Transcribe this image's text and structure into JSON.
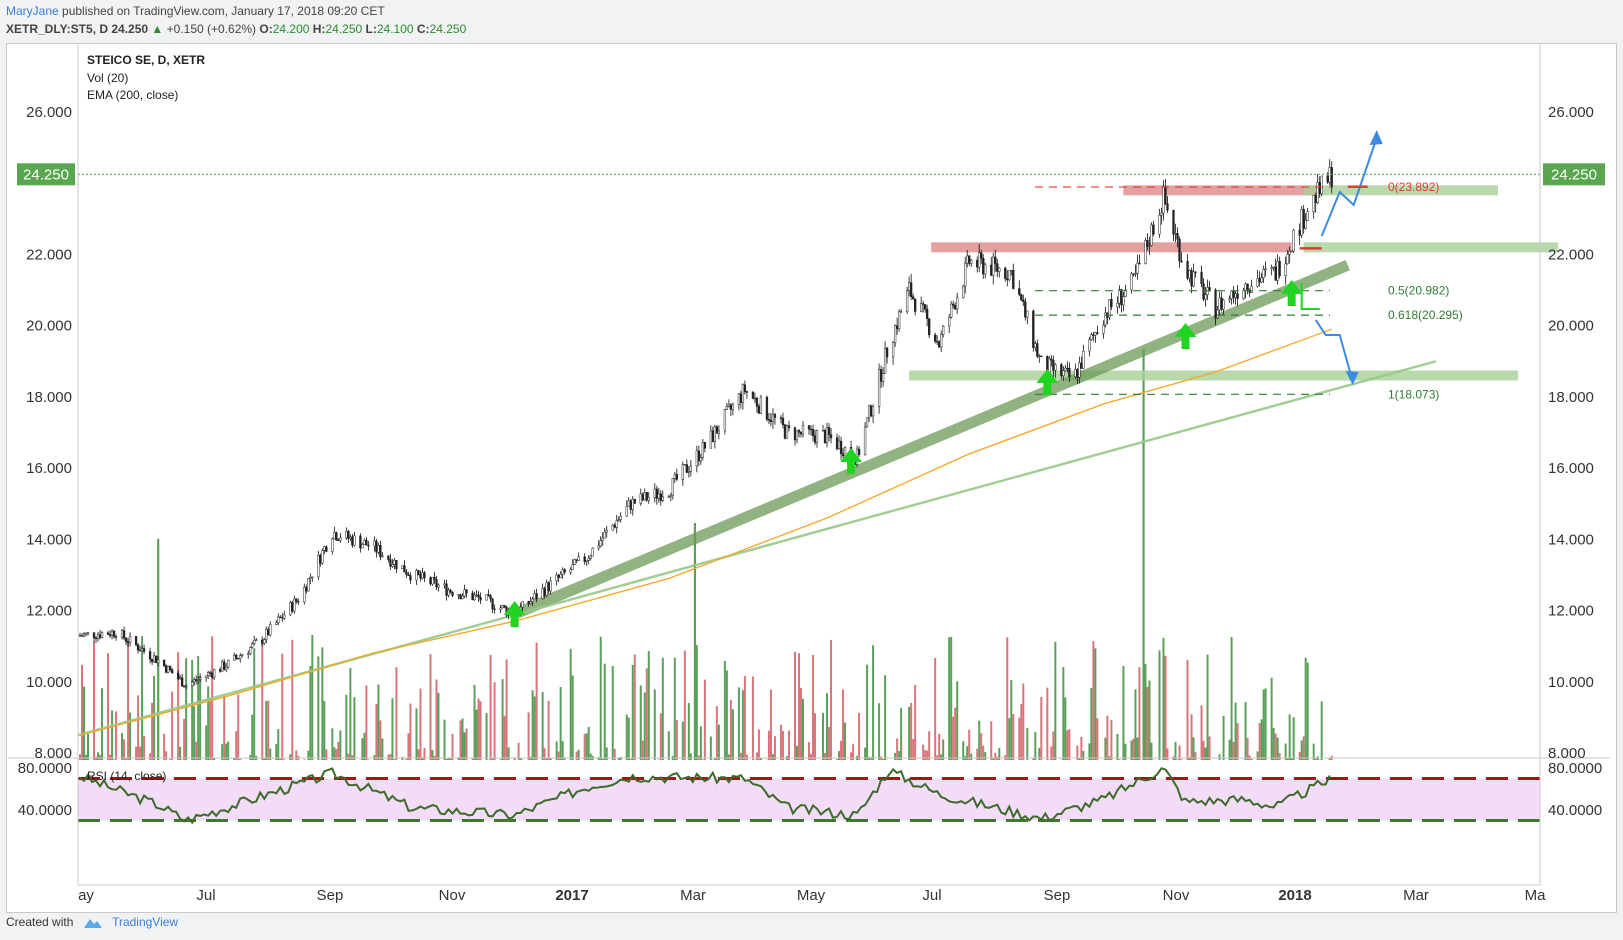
{
  "header": {
    "author": "MaryJane",
    "published": "published on TradingView.com, January 17, 2018 09:20 CET",
    "symbol_line": "XETR_DLY:ST5, D",
    "last": "24.250",
    "change": "+0.150 (+0.62%)",
    "o_label": "O:",
    "o_val": "24.200",
    "h_label": "H:",
    "h_val": "24.250",
    "l_label": "L:",
    "l_val": "24.100",
    "c_label": "C:",
    "c_val": "24.250"
  },
  "legend": {
    "title": "STEICO SE, D, XETR",
    "vol": "Vol (20)",
    "ema": "EMA (200, close)",
    "rsi": "RSI (14, close)"
  },
  "price_axis": {
    "labels": [
      "26.000",
      "22.000",
      "20.000",
      "18.000",
      "16.000",
      "14.000",
      "12.000",
      "10.000",
      "8.000"
    ],
    "values": [
      26,
      22,
      20,
      18,
      16,
      14,
      12,
      10,
      8
    ],
    "current_label": "24.250",
    "current_value": 24.25
  },
  "rsi_axis": {
    "labels": [
      "80.0000",
      "40.0000"
    ],
    "values": [
      80,
      40
    ]
  },
  "time_axis": {
    "labels": [
      "ay",
      "Jul",
      "Sep",
      "Nov",
      "2017",
      "Mar",
      "May",
      "Jul",
      "Sep",
      "Nov",
      "2018",
      "Mar",
      "Ma"
    ],
    "bold": [
      "2017",
      "2018"
    ]
  },
  "fib": [
    {
      "label": "0(23.892)",
      "value": 23.892,
      "color": "#e53935"
    },
    {
      "label": "0.5(20.982)",
      "value": 20.982,
      "color": "#2e7d32"
    },
    {
      "label": "0.618(20.295)",
      "value": 20.295,
      "color": "#2e7d32"
    },
    {
      "label": "1(18.073)",
      "value": 18.073,
      "color": "#2e7d32"
    }
  ],
  "colors": {
    "up": "#2e7d32",
    "down": "#b71c1c",
    "volume_up": "#5aa05a",
    "volume_down": "#d9757a",
    "ema": "#f5a623",
    "rsi_line": "#3d6b2a",
    "rsi_band": "#f3dcf7",
    "current_price": "#4caf50"
  },
  "footer": {
    "created": "Created with",
    "brand": "TradingView"
  },
  "chart_data": {
    "type": "candlestick",
    "title": "STEICO SE, D, XETR",
    "ylim": [
      7.2,
      27.5
    ],
    "x_range": [
      "2016-05",
      "2018-05"
    ],
    "close_series": [
      {
        "date": "2016-05-02",
        "close": 11.3
      },
      {
        "date": "2016-05-20",
        "close": 11.4
      },
      {
        "date": "2016-06-10",
        "close": 10.6
      },
      {
        "date": "2016-06-24",
        "close": 9.9
      },
      {
        "date": "2016-07-15",
        "close": 10.5
      },
      {
        "date": "2016-08-01",
        "close": 11.2
      },
      {
        "date": "2016-08-20",
        "close": 12.4
      },
      {
        "date": "2016-09-05",
        "close": 14.2
      },
      {
        "date": "2016-09-25",
        "close": 13.8
      },
      {
        "date": "2016-10-15",
        "close": 13.0
      },
      {
        "date": "2016-11-01",
        "close": 12.6
      },
      {
        "date": "2016-11-20",
        "close": 12.3
      },
      {
        "date": "2016-12-05",
        "close": 11.9
      },
      {
        "date": "2016-12-20",
        "close": 12.6
      },
      {
        "date": "2017-01-10",
        "close": 13.5
      },
      {
        "date": "2017-02-01",
        "close": 15.0
      },
      {
        "date": "2017-02-20",
        "close": 15.4
      },
      {
        "date": "2017-03-10",
        "close": 16.6
      },
      {
        "date": "2017-03-30",
        "close": 18.2
      },
      {
        "date": "2017-04-20",
        "close": 17.0
      },
      {
        "date": "2017-05-10",
        "close": 16.9
      },
      {
        "date": "2017-05-25",
        "close": 16.3
      },
      {
        "date": "2017-06-10",
        "close": 19.5
      },
      {
        "date": "2017-06-20",
        "close": 21.0
      },
      {
        "date": "2017-07-05",
        "close": 19.5
      },
      {
        "date": "2017-07-20",
        "close": 21.8
      },
      {
        "date": "2017-08-10",
        "close": 21.5
      },
      {
        "date": "2017-08-25",
        "close": 18.9
      },
      {
        "date": "2017-09-10",
        "close": 18.5
      },
      {
        "date": "2017-09-25",
        "close": 20.3
      },
      {
        "date": "2017-10-10",
        "close": 21.2
      },
      {
        "date": "2017-10-25",
        "close": 23.6
      },
      {
        "date": "2017-11-05",
        "close": 21.6
      },
      {
        "date": "2017-11-20",
        "close": 20.5
      },
      {
        "date": "2017-12-05",
        "close": 21.2
      },
      {
        "date": "2017-12-20",
        "close": 21.5
      },
      {
        "date": "2018-01-05",
        "close": 23.3
      },
      {
        "date": "2018-01-17",
        "close": 24.25
      }
    ],
    "ema_series": [
      {
        "date": "2016-05-02",
        "value": 8.5
      },
      {
        "date": "2016-07-15",
        "value": 9.6
      },
      {
        "date": "2016-09-25",
        "value": 10.8
      },
      {
        "date": "2016-12-05",
        "value": 11.7
      },
      {
        "date": "2017-02-20",
        "value": 12.9
      },
      {
        "date": "2017-05-10",
        "value": 14.6
      },
      {
        "date": "2017-07-20",
        "value": 16.4
      },
      {
        "date": "2017-09-25",
        "value": 17.8
      },
      {
        "date": "2017-11-20",
        "value": 18.7
      },
      {
        "date": "2018-01-17",
        "value": 19.9
      }
    ],
    "rsi_series": [
      {
        "date": "2016-05-02",
        "value": 72
      },
      {
        "date": "2016-06-10",
        "value": 45
      },
      {
        "date": "2016-06-24",
        "value": 30
      },
      {
        "date": "2016-08-20",
        "value": 65
      },
      {
        "date": "2016-09-05",
        "value": 75
      },
      {
        "date": "2016-10-15",
        "value": 42
      },
      {
        "date": "2016-12-05",
        "value": 35
      },
      {
        "date": "2017-01-10",
        "value": 62
      },
      {
        "date": "2017-02-01",
        "value": 72
      },
      {
        "date": "2017-03-30",
        "value": 70
      },
      {
        "date": "2017-04-20",
        "value": 42
      },
      {
        "date": "2017-05-25",
        "value": 35
      },
      {
        "date": "2017-06-10",
        "value": 78
      },
      {
        "date": "2017-07-05",
        "value": 55
      },
      {
        "date": "2017-08-25",
        "value": 32
      },
      {
        "date": "2017-09-25",
        "value": 50
      },
      {
        "date": "2017-10-25",
        "value": 80
      },
      {
        "date": "2017-11-05",
        "value": 48
      },
      {
        "date": "2017-12-05",
        "value": 50
      },
      {
        "date": "2017-12-20",
        "value": 43
      },
      {
        "date": "2018-01-17",
        "value": 70
      }
    ],
    "rsi_bands": [
      70,
      30
    ],
    "volume_spikes": [
      {
        "date": "2017-10-15",
        "value": 12.4
      },
      {
        "date": "2017-03-05",
        "value": 10.2
      },
      {
        "date": "2016-06-10",
        "value": 10.0
      }
    ],
    "annotations": {
      "resistance_zones": [
        {
          "from": "2017-07-01",
          "to": "2017-12-28",
          "value": 22.2
        },
        {
          "from": "2017-10-05",
          "to": "2018-01-10",
          "value": 23.8
        }
      ],
      "support_zones": [
        {
          "from": "2017-06-20",
          "to": "2018-04-20",
          "value": 18.6
        },
        {
          "from": "2018-01-03",
          "to": "2018-04-10",
          "value": 23.8
        },
        {
          "from": "2018-01-03",
          "to": "2018-05-10",
          "value": 22.2
        }
      ],
      "trendlines": [
        {
          "from": [
            "2016-12-05",
            11.9
          ],
          "to": [
            "2018-01-25",
            21.7
          ]
        },
        {
          "from": [
            "2016-05-01",
            8.5
          ],
          "to": [
            "2018-03-10",
            19.0
          ]
        }
      ],
      "up_arrows": [
        "2016-12-05",
        "2017-05-22",
        "2017-08-28",
        "2017-11-05",
        "2017-12-28"
      ]
    }
  }
}
